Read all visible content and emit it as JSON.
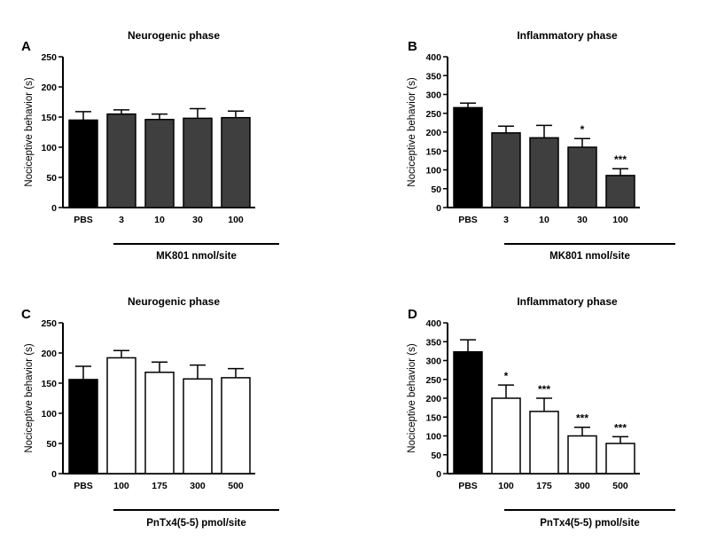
{
  "chart_data": [
    {
      "panel": "A",
      "type": "bar",
      "title": "Neurogenic phase",
      "ylabel": "Nociceptive behavior  (s)",
      "ylim": [
        0,
        250
      ],
      "yticks": [
        0,
        50,
        100,
        150,
        200,
        250
      ],
      "categories": [
        "PBS",
        "3",
        "10",
        "30",
        "100"
      ],
      "values": [
        145,
        155,
        146,
        148,
        149
      ],
      "errors": [
        14,
        7,
        9,
        16,
        11
      ],
      "bar_colors": [
        "#000000",
        "#3f3f3f",
        "#3f3f3f",
        "#3f3f3f",
        "#3f3f3f"
      ],
      "significance": [
        "",
        "",
        "",
        "",
        ""
      ],
      "group_label": "MK801 nmol/site"
    },
    {
      "panel": "B",
      "type": "bar",
      "title": "Inflammatory phase",
      "ylabel": "Nociceptive behavior (s)",
      "ylim": [
        0,
        400
      ],
      "yticks": [
        0,
        50,
        100,
        150,
        200,
        250,
        300,
        350,
        400
      ],
      "categories": [
        "PBS",
        "3",
        "10",
        "30",
        "100"
      ],
      "values": [
        265,
        198,
        185,
        160,
        85
      ],
      "errors": [
        12,
        18,
        33,
        23,
        18
      ],
      "bar_colors": [
        "#000000",
        "#3f3f3f",
        "#3f3f3f",
        "#3f3f3f",
        "#3f3f3f"
      ],
      "significance": [
        "",
        "",
        "",
        "*",
        "***"
      ],
      "group_label": "MK801 nmol/site"
    },
    {
      "panel": "C",
      "type": "bar",
      "title": "Neurogenic phase",
      "ylabel": "Nociceptive behavior  (s)",
      "ylim": [
        0,
        250
      ],
      "yticks": [
        0,
        50,
        100,
        150,
        200,
        250
      ],
      "categories": [
        "PBS",
        "100",
        "175",
        "300",
        "500"
      ],
      "values": [
        156,
        192,
        168,
        157,
        159
      ],
      "errors": [
        22,
        12,
        17,
        23,
        15
      ],
      "bar_colors": [
        "#000000",
        "#ffffff",
        "#ffffff",
        "#ffffff",
        "#ffffff"
      ],
      "significance": [
        "",
        "",
        "",
        "",
        ""
      ],
      "group_label": "PnTx4(5-5) pmol/site"
    },
    {
      "panel": "D",
      "type": "bar",
      "title": "Inflammatory phase",
      "ylabel": "Nociceptive behavior (s)",
      "ylim": [
        0,
        400
      ],
      "yticks": [
        0,
        50,
        100,
        150,
        200,
        250,
        300,
        350,
        400
      ],
      "categories": [
        "PBS",
        "100",
        "175",
        "300",
        "500"
      ],
      "values": [
        323,
        200,
        165,
        100,
        80
      ],
      "errors": [
        32,
        35,
        35,
        23,
        18
      ],
      "bar_colors": [
        "#000000",
        "#ffffff",
        "#ffffff",
        "#ffffff",
        "#ffffff"
      ],
      "significance": [
        "",
        "*",
        "***",
        "***",
        "***"
      ],
      "group_label": "PnTx4(5-5) pmol/site"
    }
  ]
}
